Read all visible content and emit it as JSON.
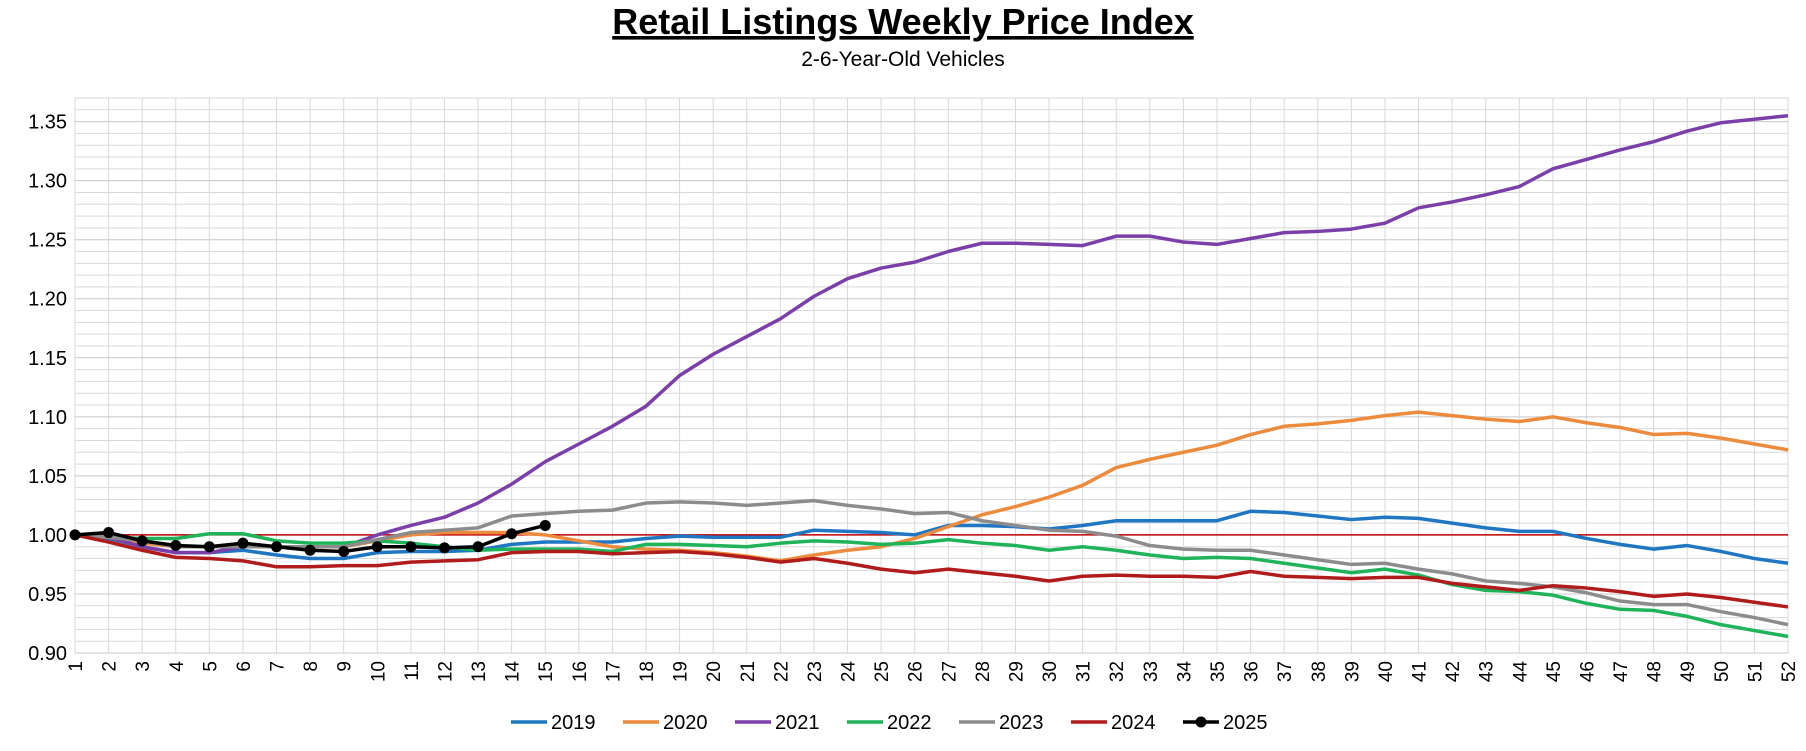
{
  "chart_data": {
    "type": "line",
    "title": "Retail Listings Weekly Price Index",
    "subtitle": "2-6-Year-Old Vehicles",
    "x": [
      1,
      2,
      3,
      4,
      5,
      6,
      7,
      8,
      9,
      10,
      11,
      12,
      13,
      14,
      15,
      16,
      17,
      18,
      19,
      20,
      21,
      22,
      23,
      24,
      25,
      26,
      27,
      28,
      29,
      30,
      31,
      32,
      33,
      34,
      35,
      36,
      37,
      38,
      39,
      40,
      41,
      42,
      43,
      44,
      45,
      46,
      47,
      48,
      49,
      50,
      51,
      52
    ],
    "xlim": [
      1,
      52
    ],
    "ylim": [
      0.9,
      1.37
    ],
    "yticks": [
      {
        "value": 0.9,
        "label": "0.90"
      },
      {
        "value": 0.95,
        "label": "0.95"
      },
      {
        "value": 1.0,
        "label": "1.00"
      },
      {
        "value": 1.05,
        "label": "1.05"
      },
      {
        "value": 1.1,
        "label": "1.10"
      },
      {
        "value": 1.15,
        "label": "1.15"
      },
      {
        "value": 1.2,
        "label": "1.20"
      },
      {
        "value": 1.25,
        "label": "1.25"
      },
      {
        "value": 1.3,
        "label": "1.30"
      },
      {
        "value": 1.35,
        "label": "1.35"
      }
    ],
    "y_minor_ticks": [
      0.91,
      0.92,
      0.93,
      0.94,
      0.96,
      0.97,
      0.98,
      0.99,
      1.01,
      1.02,
      1.03,
      1.04,
      1.06,
      1.07,
      1.08,
      1.09,
      1.11,
      1.12,
      1.13,
      1.14,
      1.16,
      1.17,
      1.18,
      1.19,
      1.21,
      1.22,
      1.23,
      1.24,
      1.26,
      1.27,
      1.28,
      1.29,
      1.31,
      1.32,
      1.33,
      1.34,
      1.36,
      1.37
    ],
    "grid": true,
    "reference_line": {
      "value": 1.0,
      "color": "#c00000"
    },
    "legend": "bottom",
    "series": [
      {
        "name": "2019",
        "color": "#1f77c4",
        "values": [
          1.0,
          0.997,
          0.99,
          0.985,
          0.985,
          0.987,
          0.983,
          0.98,
          0.98,
          0.985,
          0.986,
          0.986,
          0.987,
          0.992,
          0.994,
          0.994,
          0.994,
          0.997,
          0.999,
          0.998,
          0.998,
          0.998,
          1.004,
          1.003,
          1.002,
          1.0,
          1.008,
          1.008,
          1.007,
          1.005,
          1.008,
          1.012,
          1.012,
          1.012,
          1.012,
          1.02,
          1.019,
          1.016,
          1.013,
          1.015,
          1.014,
          1.01,
          1.006,
          1.003,
          1.003,
          0.997,
          0.992,
          0.988,
          0.991,
          0.986,
          0.98,
          0.976
        ]
      },
      {
        "name": "2020",
        "color": "#ed8b3c",
        "values": [
          1.0,
          0.998,
          0.993,
          0.99,
          0.99,
          0.993,
          0.99,
          0.99,
          0.99,
          0.995,
          1.0,
          1.002,
          1.002,
          1.002,
          1.0,
          0.995,
          0.99,
          0.988,
          0.987,
          0.985,
          0.982,
          0.978,
          0.983,
          0.987,
          0.99,
          0.997,
          1.007,
          1.017,
          1.024,
          1.032,
          1.042,
          1.057,
          1.064,
          1.07,
          1.076,
          1.085,
          1.092,
          1.094,
          1.097,
          1.101,
          1.104,
          1.101,
          1.098,
          1.096,
          1.1,
          1.095,
          1.091,
          1.085,
          1.086,
          1.082,
          1.077,
          1.072
        ]
      },
      {
        "name": "2021",
        "color": "#7a3fa8",
        "values": [
          1.0,
          0.998,
          0.99,
          0.985,
          0.985,
          0.99,
          0.99,
          0.99,
          0.99,
          1.0,
          1.008,
          1.015,
          1.027,
          1.043,
          1.062,
          1.077,
          1.092,
          1.109,
          1.135,
          1.153,
          1.168,
          1.183,
          1.202,
          1.217,
          1.226,
          1.231,
          1.24,
          1.247,
          1.247,
          1.246,
          1.245,
          1.253,
          1.253,
          1.248,
          1.246,
          1.251,
          1.256,
          1.257,
          1.259,
          1.264,
          1.277,
          1.282,
          1.288,
          1.295,
          1.31,
          1.318,
          1.326,
          1.333,
          1.342,
          1.349,
          1.352,
          1.355
        ]
      },
      {
        "name": "2022",
        "color": "#1fb35a",
        "values": [
          1.0,
          0.998,
          0.997,
          0.997,
          1.001,
          1.001,
          0.995,
          0.993,
          0.993,
          0.995,
          0.993,
          0.99,
          0.987,
          0.988,
          0.988,
          0.988,
          0.986,
          0.992,
          0.992,
          0.991,
          0.99,
          0.993,
          0.995,
          0.994,
          0.992,
          0.993,
          0.996,
          0.993,
          0.991,
          0.987,
          0.99,
          0.987,
          0.983,
          0.98,
          0.981,
          0.98,
          0.976,
          0.972,
          0.968,
          0.971,
          0.966,
          0.958,
          0.953,
          0.952,
          0.949,
          0.942,
          0.937,
          0.936,
          0.931,
          0.924,
          0.919,
          0.914
        ]
      },
      {
        "name": "2023",
        "color": "#8c8c8c",
        "values": [
          1.0,
          0.998,
          0.995,
          0.99,
          0.99,
          0.99,
          0.99,
          0.99,
          0.99,
          0.996,
          1.002,
          1.004,
          1.006,
          1.016,
          1.018,
          1.02,
          1.021,
          1.027,
          1.028,
          1.027,
          1.025,
          1.027,
          1.029,
          1.025,
          1.022,
          1.018,
          1.019,
          1.012,
          1.008,
          1.004,
          1.003,
          0.999,
          0.991,
          0.988,
          0.987,
          0.987,
          0.983,
          0.979,
          0.975,
          0.976,
          0.971,
          0.967,
          0.961,
          0.959,
          0.956,
          0.951,
          0.944,
          0.941,
          0.941,
          0.935,
          0.93,
          0.924
        ]
      },
      {
        "name": "2024",
        "color": "#b01c1c",
        "values": [
          1.0,
          0.994,
          0.987,
          0.981,
          0.98,
          0.978,
          0.973,
          0.973,
          0.974,
          0.974,
          0.977,
          0.978,
          0.979,
          0.985,
          0.986,
          0.986,
          0.984,
          0.985,
          0.986,
          0.984,
          0.981,
          0.977,
          0.98,
          0.976,
          0.971,
          0.968,
          0.971,
          0.968,
          0.965,
          0.961,
          0.965,
          0.966,
          0.965,
          0.965,
          0.964,
          0.969,
          0.965,
          0.964,
          0.963,
          0.964,
          0.964,
          0.959,
          0.956,
          0.953,
          0.957,
          0.955,
          0.952,
          0.948,
          0.95,
          0.947,
          0.943,
          0.939
        ]
      },
      {
        "name": "2025",
        "color": "#000000",
        "marker": true,
        "values": [
          1.0,
          1.002,
          0.995,
          0.991,
          0.99,
          0.993,
          0.99,
          0.987,
          0.986,
          0.99,
          0.99,
          0.989,
          0.99,
          1.001,
          1.008,
          null,
          null,
          null,
          null,
          null,
          null,
          null,
          null,
          null,
          null,
          null,
          null,
          null,
          null,
          null,
          null,
          null,
          null,
          null,
          null,
          null,
          null,
          null,
          null,
          null,
          null,
          null,
          null,
          null,
          null,
          null,
          null,
          null,
          null,
          null,
          null,
          null
        ]
      }
    ]
  }
}
